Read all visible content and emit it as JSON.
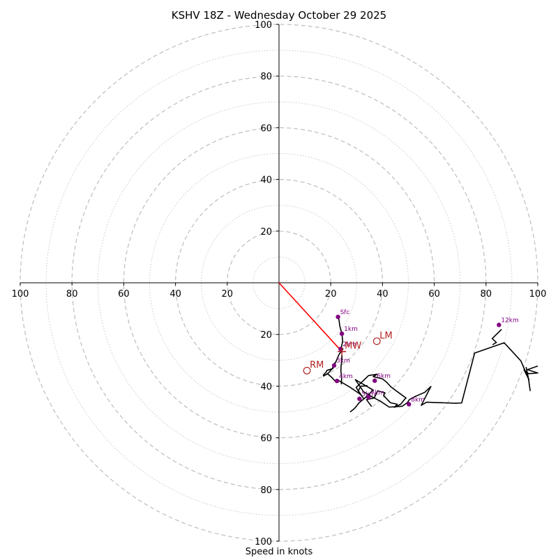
{
  "chart_data": {
    "type": "hodograph",
    "title": "KSHV 18Z - Wednesday October 29 2025",
    "xlabel": "Speed in knots",
    "units": "knots",
    "xlim": [
      -100,
      100
    ],
    "ylim": [
      -100,
      100
    ],
    "major_rings": [
      20,
      40,
      60,
      80,
      100
    ],
    "minor_rings": [
      10,
      30,
      50,
      70,
      90
    ],
    "x_tick_labels": [
      {
        "value": -100,
        "label": "100"
      },
      {
        "value": -80,
        "label": "80"
      },
      {
        "value": -60,
        "label": "60"
      },
      {
        "value": -40,
        "label": "40"
      },
      {
        "value": -20,
        "label": "20"
      },
      {
        "value": 20,
        "label": "20"
      },
      {
        "value": 40,
        "label": "40"
      },
      {
        "value": 60,
        "label": "60"
      },
      {
        "value": 80,
        "label": "80"
      },
      {
        "value": 100,
        "label": "100"
      }
    ],
    "y_tick_labels": [
      {
        "value": 100,
        "label": "100"
      },
      {
        "value": 80,
        "label": "80"
      },
      {
        "value": 60,
        "label": "60"
      },
      {
        "value": 40,
        "label": "40"
      },
      {
        "value": 20,
        "label": "20"
      },
      {
        "value": -20,
        "label": "20"
      },
      {
        "value": -40,
        "label": "40"
      },
      {
        "value": -60,
        "label": "60"
      },
      {
        "value": -80,
        "label": "80"
      },
      {
        "value": -100,
        "label": "100"
      }
    ],
    "trace": {
      "name": "hodograph trace",
      "u": [
        22.8,
        23.2,
        23.5,
        24.3,
        24.6,
        24.1,
        24.7,
        24.1,
        23.2,
        22.0,
        20.5,
        19.1,
        17.2,
        18.8,
        20.6,
        22.0,
        23.0,
        27.6,
        31.5,
        32.8,
        34.2,
        36.4,
        33.8,
        29.5,
        32.7,
        35.9,
        39.3,
        42.6,
        47.6,
        49.6,
        50.4,
        52.6,
        56.3,
        58.7,
        55.0,
        57.0,
        68.2,
        70.6,
        75.6,
        87.0,
        92.8,
        93.5,
        96.6,
        94.7,
        96.5,
        100,
        96.0,
        100
      ],
      "v": [
        -13.2,
        -14.5,
        -16.8,
        -19.7,
        -22.5,
        -25.0,
        -25.6,
        -26.5,
        -27.7,
        -30.5,
        -33.3,
        -34.9,
        -36.1,
        -35.2,
        -36.8,
        -38.4,
        -37.8,
        -40.5,
        -43.2,
        -44.9,
        -43.7,
        -41.5,
        -40.0,
        -37.5,
        -42.2,
        -44.1,
        -45.9,
        -48.1,
        -47.8,
        -46.4,
        -45.2,
        -44.0,
        -42.4,
        -40.1,
        -47.4,
        -46.2,
        -46.6,
        -46.5,
        -27.2,
        -23.2,
        -29.5,
        -30.3,
        -37.5,
        -33.7,
        -35.2,
        -34.9,
        -33.6,
        -32.2
      ],
      "color": "#000000"
    },
    "segments": [
      {
        "u": [
          30.5,
          31.6,
          32.2,
          34.2
        ],
        "v": [
          -42.1,
          -40.0,
          -40.0,
          -39.8
        ]
      },
      {
        "u": [
          24.3,
          24.3,
          24.0,
          23.9,
          24.2,
          24.1
        ],
        "v": [
          -28.1,
          -30.2,
          -32.0,
          -34.1,
          -36.5,
          -39.3
        ]
      },
      {
        "u": [
          21.5,
          20.8,
          18.5,
          18.2,
          17.0
        ],
        "v": [
          -30.9,
          -33.2,
          -33.9,
          -34.6,
          -35.8
        ]
      },
      {
        "u": [
          32.0,
          29.8,
          34.6,
          37.9,
          36.4,
          40.0,
          41.5,
          43.4,
          46.1,
          49.1,
          48.8,
          47.0,
          44.6,
          45.7,
          43.0,
          40.4,
          41.0,
          38.1,
          36.8,
          33.8,
          35.8
        ],
        "v": [
          -43.8,
          -40.5,
          -35.9,
          -35.4,
          -36.3,
          -37.2,
          -38.4,
          -40.4,
          -42.4,
          -44.6,
          -44.8,
          -47.0,
          -48.2,
          -47.0,
          -46.4,
          -43.6,
          -42.6,
          -41.8,
          -44.6,
          -45.2,
          -47.9
        ]
      },
      {
        "u": [
          32.8,
          30.9,
          29.8,
          29.0,
          27.5
        ],
        "v": [
          -44.9,
          -46.5,
          -47.9,
          -48.8,
          -50.0
        ]
      },
      {
        "u": [
          86.0,
          82.4,
          84.0,
          82.5
        ],
        "v": [
          -18.0,
          -21.6,
          -23.1,
          -24.0
        ]
      },
      {
        "u": [
          95.5,
          96.4,
          97.1
        ],
        "v": [
          -32.6,
          -37.0,
          -41.9
        ]
      }
    ],
    "height_markers": [
      {
        "label": "Sfc",
        "u": 22.8,
        "v": -13.2
      },
      {
        "label": "1km",
        "u": 24.3,
        "v": -19.7
      },
      {
        "label": "2km",
        "u": 23.8,
        "v": -25.6
      },
      {
        "label": "3km",
        "u": 21.3,
        "v": -32.0
      },
      {
        "label": "4km",
        "u": 22.4,
        "v": -38.0
      },
      {
        "label": "5km",
        "u": 31.1,
        "v": -44.9
      },
      {
        "label": "6km",
        "u": 37.0,
        "v": -37.9
      },
      {
        "label": "7km",
        "u": 34.6,
        "v": -44.3
      },
      {
        "label": "8km",
        "u": 50.2,
        "v": -47.0
      },
      {
        "label": "12km",
        "u": 85.0,
        "v": -16.3
      }
    ],
    "storm_motions": [
      {
        "label": "RM",
        "u": 10.8,
        "v": -34.0
      },
      {
        "label": "LM",
        "u": 37.8,
        "v": -22.6
      },
      {
        "label": "MW",
        "u": 24.3,
        "v": -26.6
      }
    ],
    "mean_wind_vector": {
      "from": [
        0,
        0
      ],
      "to": [
        24.3,
        -26.6
      ],
      "color": "#ff0000"
    },
    "marker_color": "#800080",
    "motion_color": "#b22222"
  }
}
